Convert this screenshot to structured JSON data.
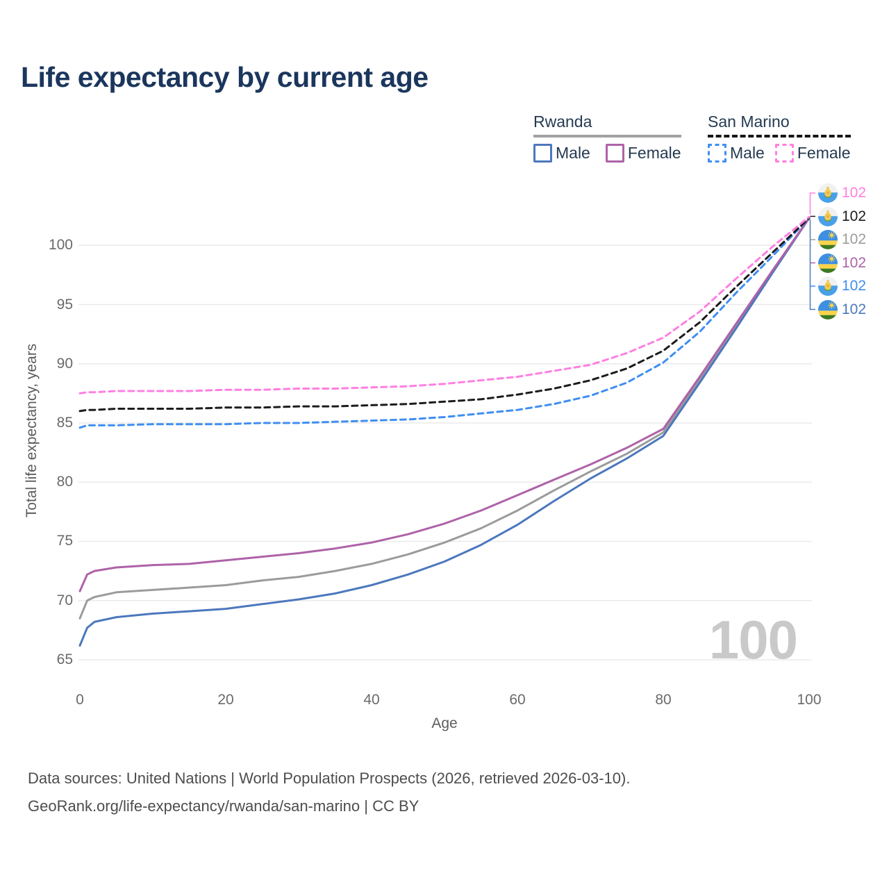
{
  "header": {
    "title": "Life expectancy by current age",
    "title_color": "#1b365d"
  },
  "legend": {
    "groups": [
      {
        "country": "Rwanda",
        "line_style": "solid",
        "line_color": "#a2a2a2",
        "items": [
          {
            "label": "Male",
            "color": "#4c78bd",
            "dashed": false
          },
          {
            "label": "Female",
            "color": "#ae62a8",
            "dashed": false
          }
        ]
      },
      {
        "country": "San Marino",
        "line_style": "dashed",
        "line_color": "#171717",
        "items": [
          {
            "label": "Male",
            "color": "#3f8ef2",
            "dashed": true
          },
          {
            "label": "Female",
            "color": "#ff7fe1",
            "dashed": true
          }
        ]
      }
    ]
  },
  "axes": {
    "x_title": "Age",
    "y_title": "Total life expectancy, years"
  },
  "chart_data": {
    "type": "line",
    "title": "Life expectancy by current age",
    "xlabel": "Age",
    "ylabel": "Total life expectancy, years",
    "xlim": [
      0,
      100
    ],
    "ylim": [
      64,
      103.3
    ],
    "xticks": [
      0,
      20,
      40,
      60,
      80,
      100
    ],
    "yticks": [
      65,
      70,
      75,
      80,
      85,
      90,
      95,
      100
    ],
    "grid": "horizontal",
    "gridline_color": "#eaeaea",
    "legend_position": "top-right",
    "watermark": "100",
    "ages": [
      0,
      1,
      2,
      5,
      10,
      15,
      20,
      25,
      30,
      35,
      40,
      45,
      50,
      55,
      60,
      65,
      70,
      75,
      80,
      85,
      90,
      95,
      100
    ],
    "series": [
      {
        "name": "Rwanda Both sexes",
        "country": "Rwanda",
        "sex": "Both",
        "color": "#9b9b9b",
        "dash": "solid",
        "values": [
          68.5,
          70.0,
          70.3,
          70.7,
          70.9,
          71.1,
          71.3,
          71.7,
          72.0,
          72.5,
          73.1,
          73.9,
          74.9,
          76.1,
          77.6,
          79.3,
          80.9,
          82.4,
          84.2,
          88.7,
          93.2,
          97.8,
          102.3
        ]
      },
      {
        "name": "Rwanda Male",
        "country": "Rwanda",
        "sex": "Male",
        "color": "#4c78bd",
        "dash": "solid",
        "values": [
          66.2,
          67.7,
          68.2,
          68.6,
          68.9,
          69.1,
          69.3,
          69.7,
          70.1,
          70.6,
          71.3,
          72.2,
          73.3,
          74.7,
          76.4,
          78.4,
          80.3,
          82.0,
          83.9,
          88.4,
          93.0,
          97.7,
          102.3
        ]
      },
      {
        "name": "Rwanda Female",
        "country": "Rwanda",
        "sex": "Female",
        "color": "#ae62a8",
        "dash": "solid",
        "values": [
          70.8,
          72.2,
          72.5,
          72.8,
          73.0,
          73.1,
          73.4,
          73.7,
          74.0,
          74.4,
          74.9,
          75.6,
          76.5,
          77.6,
          78.9,
          80.2,
          81.5,
          82.9,
          84.5,
          88.9,
          93.4,
          97.9,
          102.3
        ]
      },
      {
        "name": "San Marino Male",
        "country": "San Marino",
        "sex": "Male",
        "color": "#3f8ef2",
        "dash": "dashed",
        "values": [
          84.6,
          84.8,
          84.8,
          84.8,
          84.9,
          84.9,
          84.9,
          85.0,
          85.0,
          85.1,
          85.2,
          85.3,
          85.5,
          85.8,
          86.1,
          86.6,
          87.3,
          88.4,
          90.1,
          92.7,
          96.0,
          99.1,
          102.3
        ]
      },
      {
        "name": "San Marino Both sexes",
        "country": "San Marino",
        "sex": "Both",
        "color": "#1c1c1c",
        "dash": "dashed",
        "values": [
          86.0,
          86.1,
          86.1,
          86.2,
          86.2,
          86.2,
          86.3,
          86.3,
          86.4,
          86.4,
          86.5,
          86.6,
          86.8,
          87.0,
          87.4,
          87.9,
          88.6,
          89.6,
          91.1,
          93.5,
          96.5,
          99.4,
          102.3
        ]
      },
      {
        "name": "San Marino Female",
        "country": "San Marino",
        "sex": "Female",
        "color": "#ff7fe1",
        "dash": "dashed",
        "values": [
          87.5,
          87.6,
          87.6,
          87.7,
          87.7,
          87.7,
          87.8,
          87.8,
          87.9,
          87.9,
          88.0,
          88.1,
          88.3,
          88.6,
          88.9,
          89.4,
          89.9,
          90.9,
          92.2,
          94.4,
          97.2,
          99.9,
          102.4
        ]
      }
    ],
    "end_labels": [
      {
        "text": "102",
        "series": "San Marino Female",
        "flag": "san-marino",
        "color": "#ff7fe1"
      },
      {
        "text": "102",
        "series": "San Marino Both sexes",
        "flag": "san-marino",
        "color": "#1c1c1c"
      },
      {
        "text": "102",
        "series": "Rwanda Both sexes",
        "flag": "rwanda",
        "color": "#9b9b9b"
      },
      {
        "text": "102",
        "series": "Rwanda Female",
        "flag": "rwanda",
        "color": "#ae62a8"
      },
      {
        "text": "102",
        "series": "San Marino Male",
        "flag": "san-marino",
        "color": "#3f8ef2"
      },
      {
        "text": "102",
        "series": "Rwanda Male",
        "flag": "rwanda",
        "color": "#4c78bd"
      }
    ]
  },
  "footer": {
    "line1": "Data sources: United Nations | World Population Prospects (2026, retrieved 2026-03-10).",
    "line2": "GeoRank.org/life-expectancy/rwanda/san-marino | CC BY"
  }
}
